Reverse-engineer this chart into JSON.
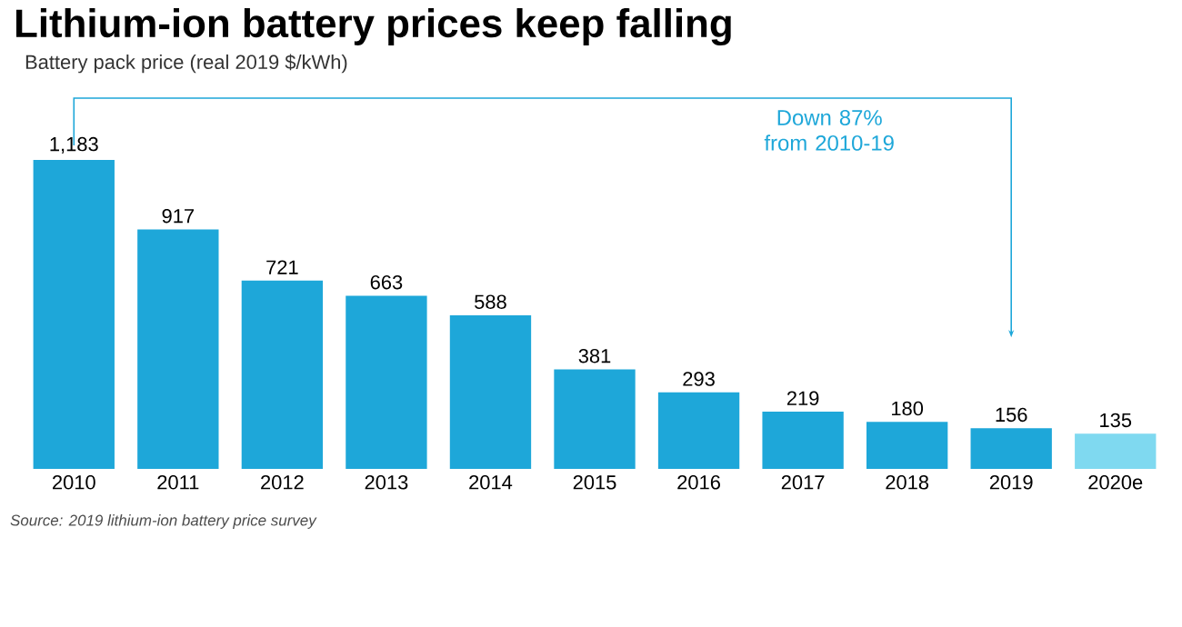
{
  "chart_data": {
    "type": "bar",
    "title": "Lithium-ion battery prices keep falling",
    "subtitle": "Battery pack price (real 2019 $/kWh)",
    "categories": [
      "2010",
      "2011",
      "2012",
      "2013",
      "2014",
      "2015",
      "2016",
      "2017",
      "2018",
      "2019",
      "2020e"
    ],
    "values": [
      1183,
      917,
      721,
      663,
      588,
      381,
      293,
      219,
      180,
      156,
      135
    ],
    "colors": [
      "#1ea7d9",
      "#1ea7d9",
      "#1ea7d9",
      "#1ea7d9",
      "#1ea7d9",
      "#1ea7d9",
      "#1ea7d9",
      "#1ea7d9",
      "#1ea7d9",
      "#1ea7d9",
      "#7fd9f0"
    ],
    "value_labels": [
      "1,183",
      "917",
      "721",
      "663",
      "588",
      "381",
      "293",
      "219",
      "180",
      "156",
      "135"
    ],
    "annotations": [
      "Down 87% from 2010-19",
      "Source: 2019 lithium-ion battery price survey"
    ]
  }
}
